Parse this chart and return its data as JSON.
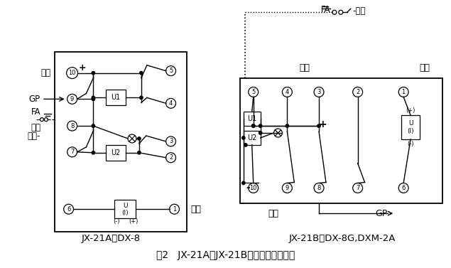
{
  "fig_width": 6.35,
  "fig_height": 3.77,
  "bg_color": "#ffffff",
  "caption": "图2   JX-21A、JX-21B接线图（正视图）",
  "left_label": "JX-21A代DX-8",
  "right_label": "JX-21B代DX-8G,DXM-2A"
}
